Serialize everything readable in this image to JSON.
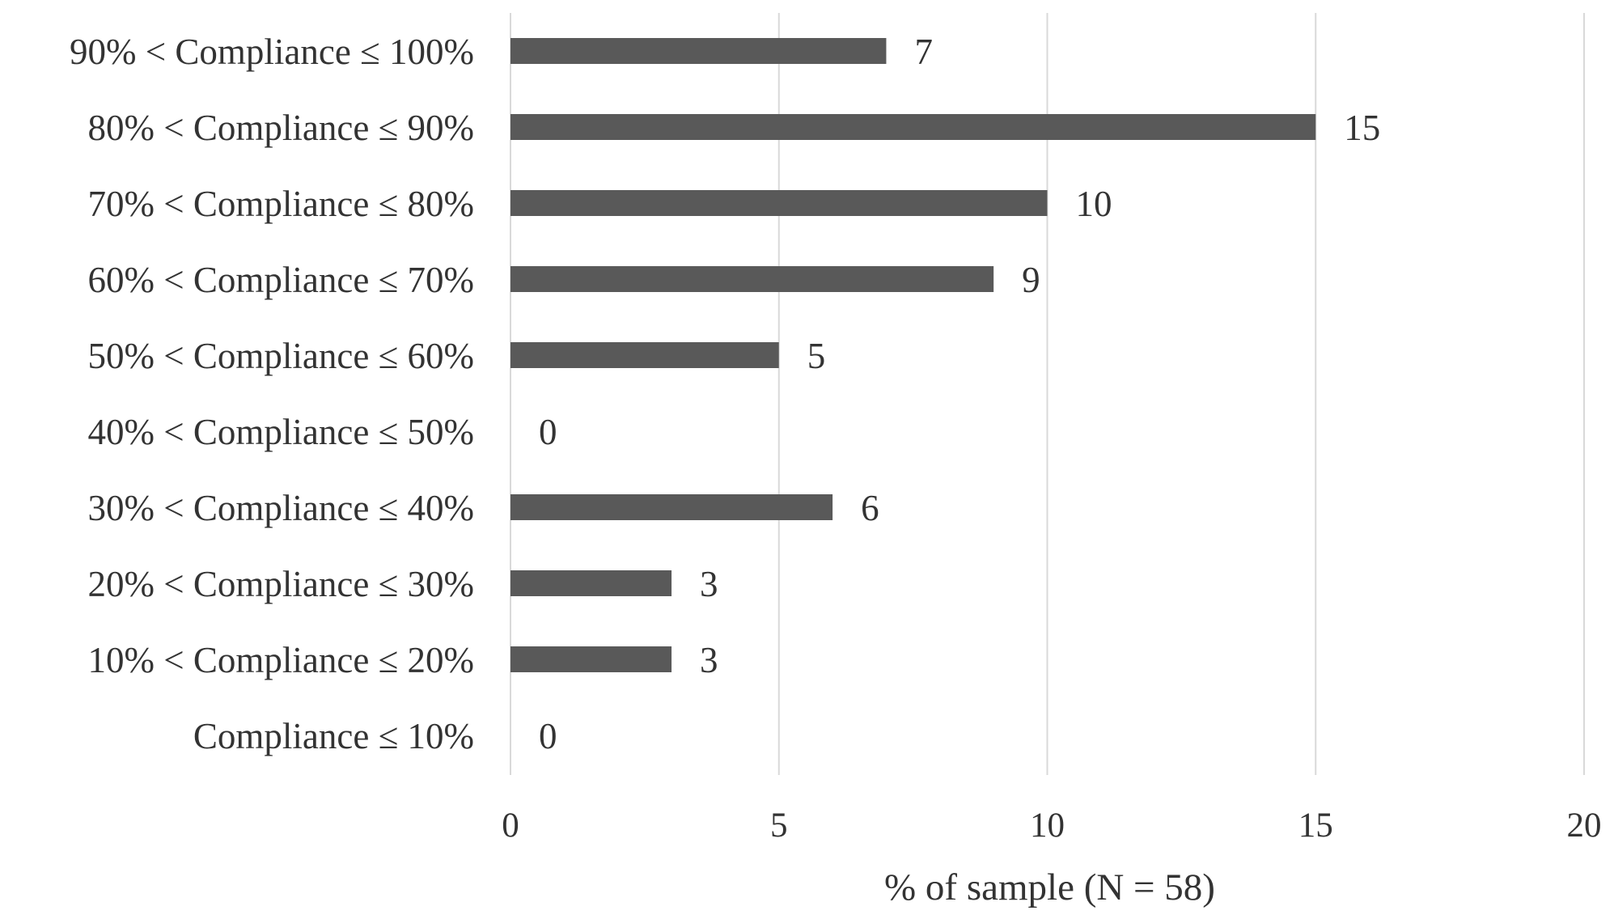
{
  "chart_data": {
    "type": "bar",
    "orientation": "horizontal",
    "categories": [
      "90% < Compliance ≤ 100%",
      "80% < Compliance ≤ 90%",
      "70% < Compliance ≤ 80%",
      "60% < Compliance ≤ 70%",
      "50% < Compliance ≤ 60%",
      "40% < Compliance ≤ 50%",
      "30% < Compliance ≤ 40%",
      "20% < Compliance ≤ 30%",
      "10% < Compliance ≤ 20%",
      "Compliance ≤ 10%"
    ],
    "values": [
      7,
      15,
      10,
      9,
      5,
      0,
      6,
      3,
      3,
      0
    ],
    "xlabel": "% of sample (N = 58)",
    "ylabel": "",
    "xlim": [
      0,
      20
    ],
    "xticks": [
      0,
      5,
      10,
      15,
      20
    ],
    "grid": "vertical",
    "legend": "none",
    "data_labels": true,
    "bar_color": "#595959",
    "gridline_color": "#d9d9d9",
    "text_color": "#333333"
  }
}
